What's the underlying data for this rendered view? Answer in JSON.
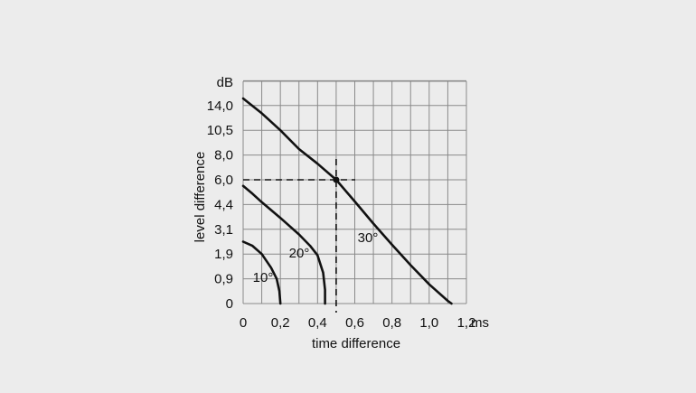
{
  "chart_data": {
    "type": "line",
    "title": "",
    "xlabel": "time difference",
    "ylabel": "level difference",
    "x_unit": "ms",
    "y_unit": "dB",
    "x_ticks": [
      "0",
      "0,2",
      "0,4",
      "0,6",
      "0,8",
      "1,0",
      "1,2"
    ],
    "y_ticks": [
      "0",
      "0,9",
      "1,9",
      "3,1",
      "4,4",
      "6,0",
      "8,0",
      "10,5",
      "14,0"
    ],
    "xlim": [
      0,
      1.2
    ],
    "grid": true,
    "y_scale": "non-linear (tick labels as printed, equally spaced)",
    "series": [
      {
        "name": "10°",
        "points": [
          [
            0,
            2.5
          ],
          [
            0.05,
            2.3
          ],
          [
            0.1,
            1.9
          ],
          [
            0.15,
            1.35
          ],
          [
            0.18,
            0.9
          ],
          [
            0.195,
            0.45
          ],
          [
            0.2,
            0
          ]
        ]
      },
      {
        "name": "20°",
        "points": [
          [
            0,
            5.6
          ],
          [
            0.05,
            5.1
          ],
          [
            0.1,
            4.55
          ],
          [
            0.2,
            3.7
          ],
          [
            0.3,
            2.85
          ],
          [
            0.36,
            2.3
          ],
          [
            0.4,
            1.85
          ],
          [
            0.43,
            1.15
          ],
          [
            0.44,
            0.5
          ],
          [
            0.44,
            0
          ]
        ]
      },
      {
        "name": "30°",
        "points": [
          [
            0,
            15.0
          ],
          [
            0.1,
            12.9
          ],
          [
            0.2,
            10.5
          ],
          [
            0.3,
            8.6
          ],
          [
            0.4,
            7.3
          ],
          [
            0.5,
            6.0
          ],
          [
            0.6,
            4.6
          ],
          [
            0.7,
            3.4
          ],
          [
            0.8,
            2.35
          ],
          [
            0.9,
            1.45
          ],
          [
            1.0,
            0.7
          ],
          [
            1.1,
            0.1
          ],
          [
            1.12,
            0
          ]
        ]
      }
    ],
    "annotation": {
      "style": "dashed crosshair",
      "x": 0.5,
      "y": 6.0
    }
  }
}
